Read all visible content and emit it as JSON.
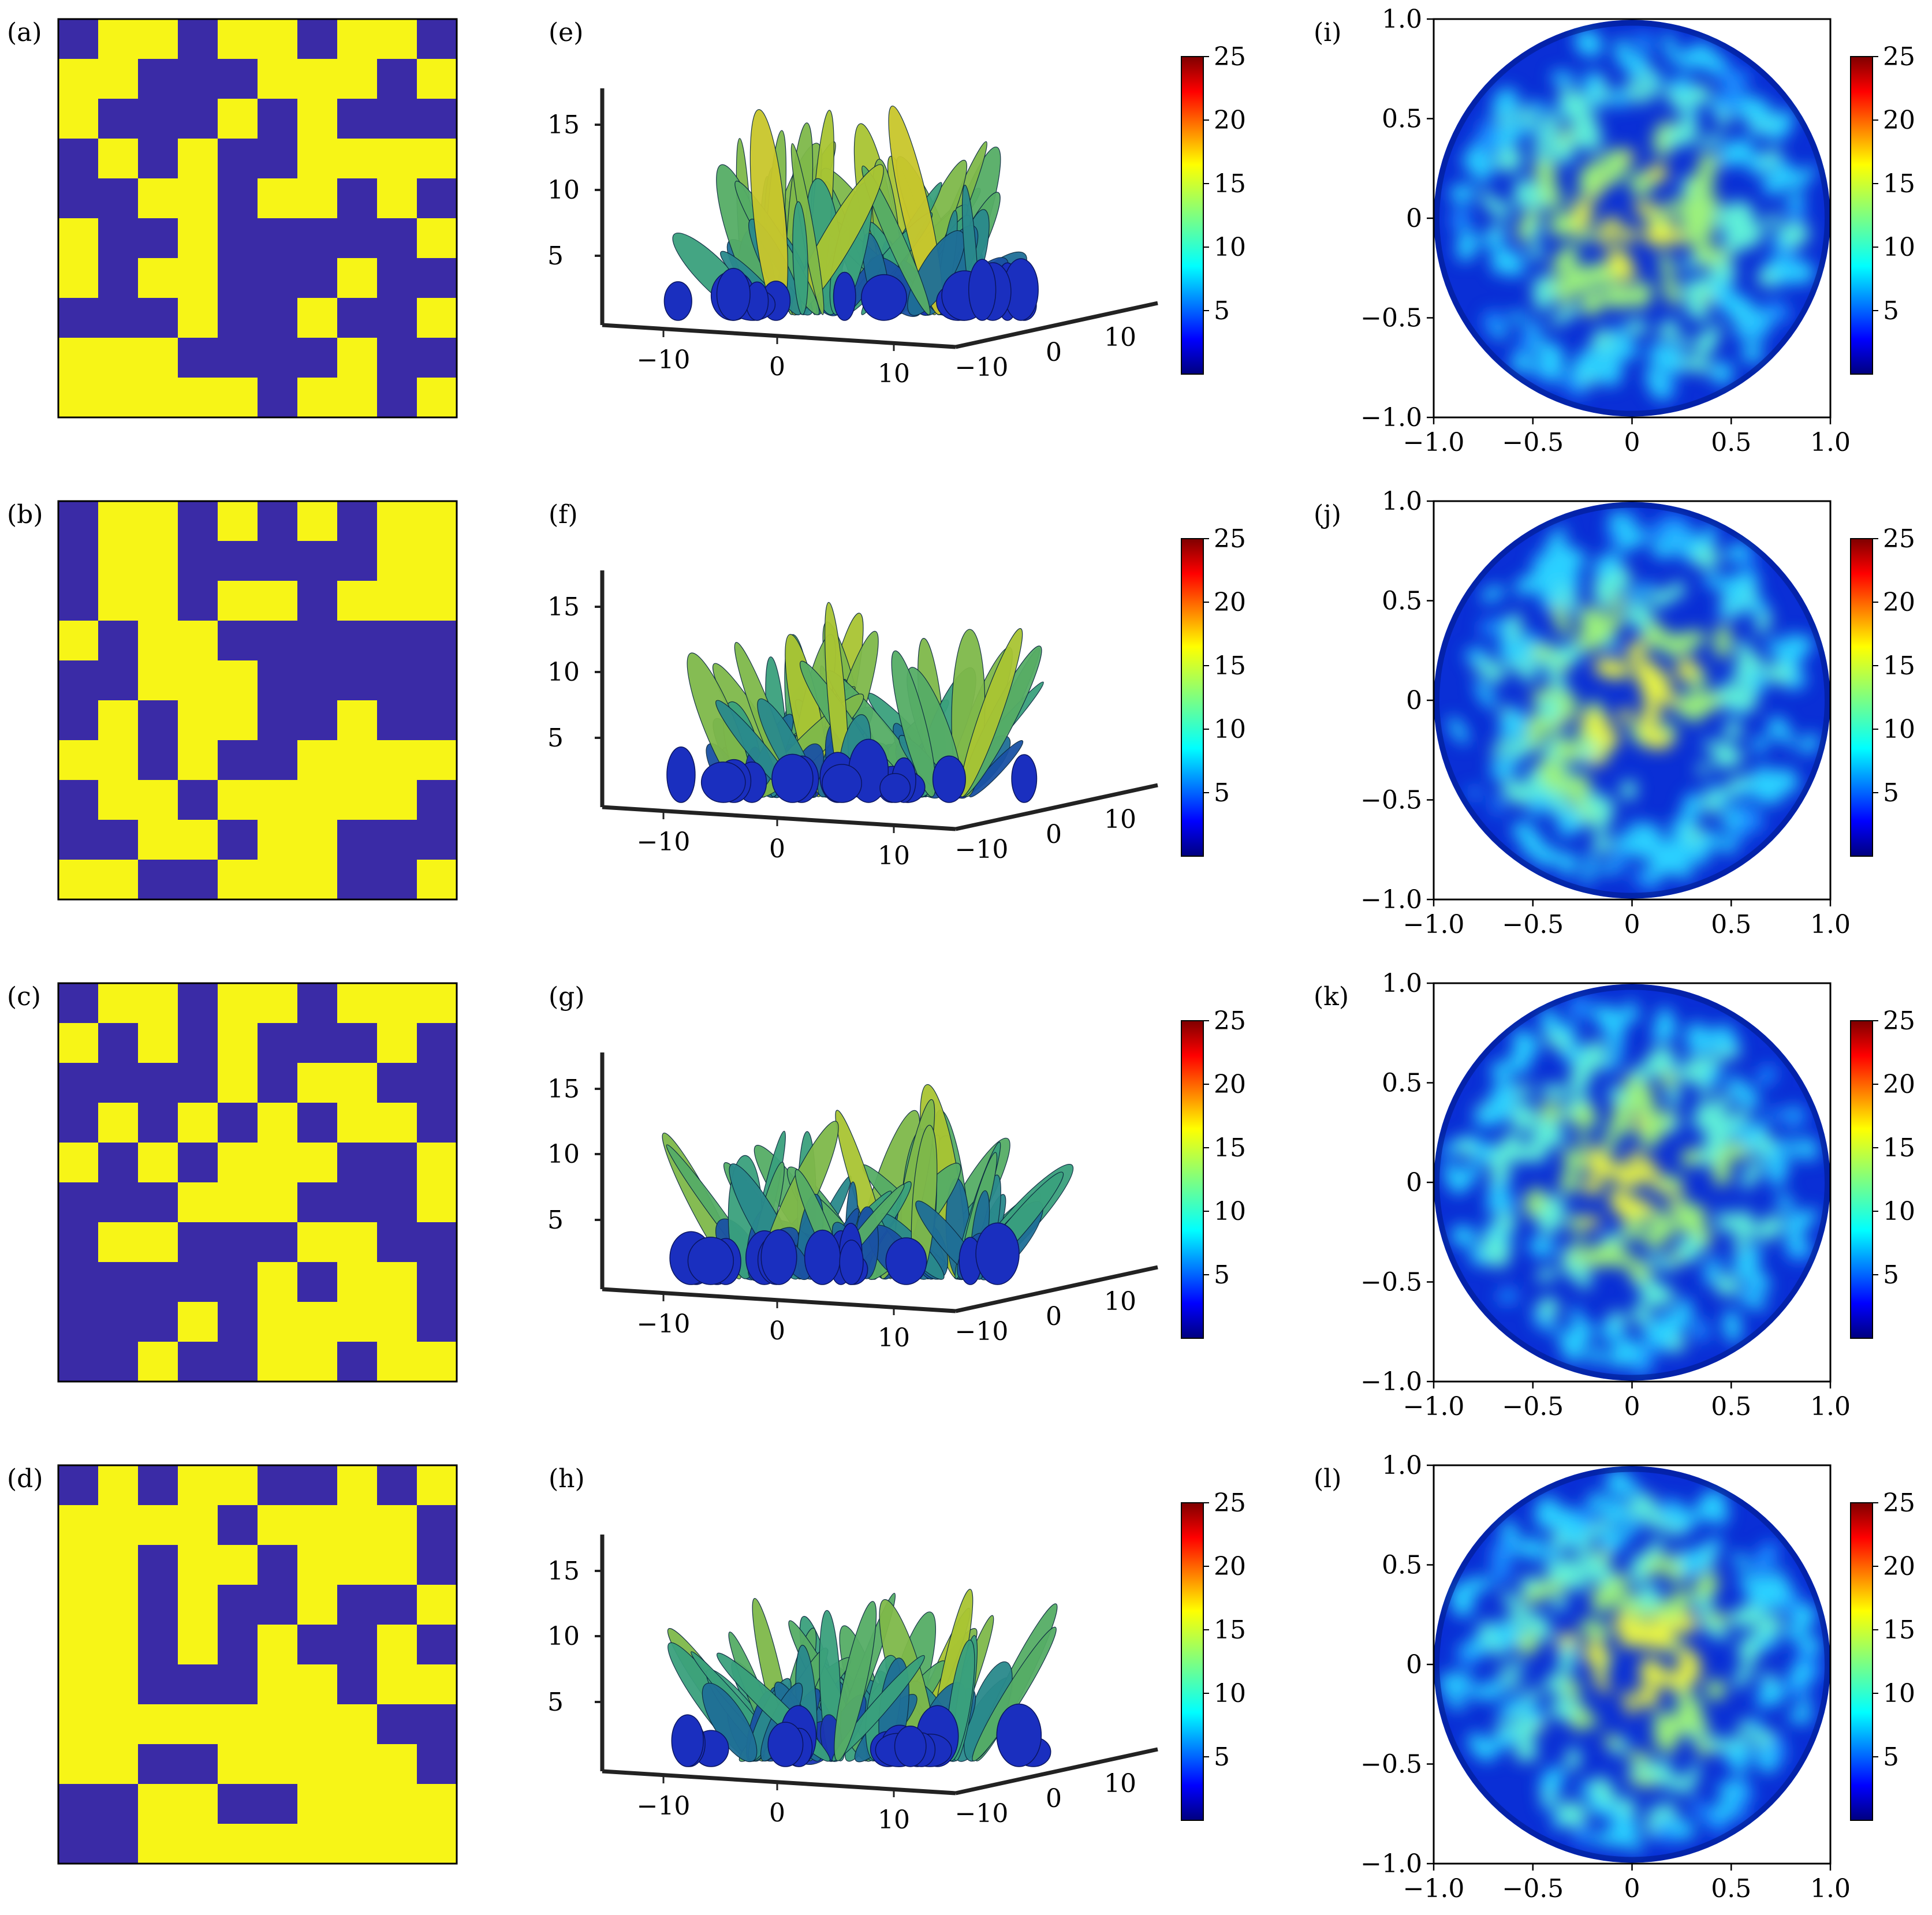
{
  "chart_data": [
    {
      "type": "heatmap",
      "panel": "(a)",
      "grid_size": 10,
      "values_01": [
        [
          0,
          1,
          1,
          0,
          1,
          1,
          0,
          1,
          1,
          0
        ],
        [
          1,
          1,
          0,
          0,
          0,
          1,
          1,
          1,
          0,
          1
        ],
        [
          1,
          0,
          0,
          0,
          1,
          0,
          1,
          0,
          0,
          0
        ],
        [
          0,
          1,
          0,
          1,
          0,
          0,
          1,
          1,
          1,
          1
        ],
        [
          0,
          0,
          1,
          1,
          0,
          1,
          1,
          0,
          1,
          0
        ],
        [
          1,
          0,
          0,
          1,
          0,
          0,
          0,
          0,
          0,
          1
        ],
        [
          1,
          0,
          1,
          1,
          0,
          0,
          0,
          1,
          0,
          0
        ],
        [
          0,
          0,
          0,
          1,
          0,
          0,
          1,
          0,
          0,
          1
        ],
        [
          1,
          1,
          1,
          0,
          0,
          0,
          0,
          1,
          0,
          0
        ],
        [
          1,
          1,
          1,
          1,
          1,
          0,
          1,
          1,
          0,
          1
        ]
      ]
    },
    {
      "type": "heatmap",
      "panel": "(b)",
      "grid_size": 10,
      "values_01": [
        [
          0,
          1,
          1,
          0,
          1,
          0,
          1,
          0,
          1,
          1
        ],
        [
          0,
          1,
          1,
          0,
          0,
          0,
          0,
          0,
          1,
          1
        ],
        [
          0,
          1,
          1,
          0,
          1,
          1,
          0,
          1,
          1,
          1
        ],
        [
          1,
          0,
          1,
          1,
          0,
          0,
          0,
          0,
          0,
          0
        ],
        [
          0,
          0,
          1,
          1,
          1,
          0,
          0,
          0,
          0,
          0
        ],
        [
          0,
          1,
          0,
          1,
          1,
          0,
          0,
          1,
          0,
          0
        ],
        [
          1,
          1,
          0,
          1,
          0,
          0,
          1,
          1,
          1,
          1
        ],
        [
          0,
          1,
          1,
          0,
          1,
          1,
          1,
          1,
          1,
          0
        ],
        [
          0,
          0,
          1,
          1,
          0,
          1,
          1,
          0,
          0,
          0
        ],
        [
          1,
          1,
          0,
          0,
          1,
          1,
          1,
          0,
          0,
          1
        ]
      ]
    },
    {
      "type": "heatmap",
      "panel": "(c)",
      "grid_size": 10,
      "values_01": [
        [
          0,
          1,
          1,
          0,
          1,
          1,
          0,
          1,
          1,
          1
        ],
        [
          1,
          0,
          1,
          0,
          1,
          0,
          0,
          0,
          1,
          0
        ],
        [
          0,
          0,
          0,
          0,
          1,
          0,
          1,
          1,
          0,
          0
        ],
        [
          0,
          1,
          0,
          1,
          0,
          1,
          0,
          1,
          1,
          0
        ],
        [
          1,
          0,
          1,
          0,
          1,
          1,
          1,
          0,
          0,
          1
        ],
        [
          0,
          0,
          0,
          1,
          1,
          1,
          0,
          0,
          0,
          1
        ],
        [
          0,
          1,
          1,
          0,
          0,
          0,
          1,
          1,
          0,
          0
        ],
        [
          0,
          0,
          0,
          0,
          0,
          1,
          0,
          1,
          1,
          0
        ],
        [
          0,
          0,
          0,
          1,
          0,
          1,
          1,
          1,
          1,
          0
        ],
        [
          0,
          0,
          1,
          0,
          0,
          1,
          1,
          0,
          1,
          1
        ]
      ]
    },
    {
      "type": "heatmap",
      "panel": "(d)",
      "grid_size": 10,
      "values_01": [
        [
          0,
          1,
          0,
          1,
          1,
          0,
          0,
          1,
          0,
          1
        ],
        [
          1,
          1,
          1,
          1,
          0,
          1,
          1,
          1,
          1,
          0
        ],
        [
          1,
          1,
          0,
          1,
          1,
          0,
          1,
          1,
          1,
          0
        ],
        [
          1,
          1,
          0,
          1,
          0,
          0,
          1,
          0,
          0,
          1
        ],
        [
          1,
          1,
          0,
          1,
          0,
          1,
          0,
          0,
          1,
          0
        ],
        [
          1,
          1,
          0,
          0,
          0,
          1,
          1,
          0,
          1,
          1
        ],
        [
          1,
          1,
          1,
          1,
          1,
          1,
          1,
          1,
          0,
          0
        ],
        [
          1,
          1,
          0,
          0,
          1,
          1,
          1,
          1,
          1,
          0
        ],
        [
          0,
          0,
          1,
          1,
          0,
          0,
          1,
          1,
          1,
          1
        ],
        [
          0,
          0,
          1,
          1,
          1,
          1,
          1,
          1,
          1,
          1
        ]
      ]
    },
    {
      "type": "surface",
      "panel": "(e)",
      "ztick_labels": [
        "5",
        "10",
        "15"
      ],
      "xtick_labels": [
        "−10",
        "0",
        "10"
      ],
      "ytick_labels": [
        "−10",
        "0",
        "10"
      ],
      "colorbar_range": [
        0,
        25
      ],
      "colorbar_ticks": [
        "5",
        "10",
        "15",
        "20",
        "25"
      ]
    },
    {
      "type": "surface",
      "panel": "(f)",
      "ztick_labels": [
        "5",
        "10",
        "15"
      ],
      "xtick_labels": [
        "−10",
        "0",
        "10"
      ],
      "ytick_labels": [
        "−10",
        "0",
        "10"
      ],
      "colorbar_range": [
        0,
        25
      ],
      "colorbar_ticks": [
        "5",
        "10",
        "15",
        "20",
        "25"
      ]
    },
    {
      "type": "surface",
      "panel": "(g)",
      "ztick_labels": [
        "5",
        "10",
        "15"
      ],
      "xtick_labels": [
        "−10",
        "0",
        "10"
      ],
      "ytick_labels": [
        "−10",
        "0",
        "10"
      ],
      "colorbar_range": [
        0,
        25
      ],
      "colorbar_ticks": [
        "5",
        "10",
        "15",
        "20",
        "25"
      ]
    },
    {
      "type": "surface",
      "panel": "(h)",
      "ztick_labels": [
        "5",
        "10",
        "15"
      ],
      "xtick_labels": [
        "−10",
        "0",
        "10"
      ],
      "ytick_labels": [
        "−10",
        "0",
        "10"
      ],
      "colorbar_range": [
        0,
        25
      ],
      "colorbar_ticks": [
        "5",
        "10",
        "15",
        "20",
        "25"
      ]
    },
    {
      "type": "heatmap",
      "panel": "(i)",
      "xlim": [
        -1.0,
        1.0
      ],
      "ylim": [
        -1.0,
        1.0
      ],
      "xtick_labels": [
        "−1.0",
        "−0.5",
        "0",
        "0.5",
        "1.0"
      ],
      "ytick_labels": [
        "1.0",
        "0.5",
        "0",
        "−0.5",
        "−1.0"
      ],
      "colorbar_range": [
        0,
        25
      ],
      "colorbar_ticks": [
        "5",
        "10",
        "15",
        "20",
        "25"
      ]
    },
    {
      "type": "heatmap",
      "panel": "(j)",
      "xlim": [
        -1.0,
        1.0
      ],
      "ylim": [
        -1.0,
        1.0
      ],
      "xtick_labels": [
        "−1.0",
        "−0.5",
        "0",
        "0.5",
        "1.0"
      ],
      "ytick_labels": [
        "1.0",
        "0.5",
        "0",
        "−0.5",
        "−1.0"
      ],
      "colorbar_range": [
        0,
        25
      ],
      "colorbar_ticks": [
        "5",
        "10",
        "15",
        "20",
        "25"
      ]
    },
    {
      "type": "heatmap",
      "panel": "(k)",
      "xlim": [
        -1.0,
        1.0
      ],
      "ylim": [
        -1.0,
        1.0
      ],
      "xtick_labels": [
        "−1.0",
        "−0.5",
        "0",
        "0.5",
        "1.0"
      ],
      "ytick_labels": [
        "1.0",
        "0.5",
        "0",
        "−0.5",
        "−1.0"
      ],
      "colorbar_range": [
        0,
        25
      ],
      "colorbar_ticks": [
        "5",
        "10",
        "15",
        "20",
        "25"
      ]
    },
    {
      "type": "heatmap",
      "panel": "(l)",
      "xlim": [
        -1.0,
        1.0
      ],
      "ylim": [
        -1.0,
        1.0
      ],
      "xtick_labels": [
        "−1.0",
        "−0.5",
        "0",
        "0.5",
        "1.0"
      ],
      "ytick_labels": [
        "1.0",
        "0.5",
        "0",
        "−0.5",
        "−1.0"
      ],
      "colorbar_range": [
        0,
        25
      ],
      "colorbar_ticks": [
        "5",
        "10",
        "15",
        "20",
        "25"
      ]
    }
  ],
  "colors": {
    "binary_on": "#f7f517",
    "binary_off": "#3a2ba6",
    "axis": "#000000",
    "axis3d": "#222222",
    "colormap": [
      "#00007f",
      "#0000ff",
      "#007fff",
      "#00ffff",
      "#7fff7f",
      "#ffff00",
      "#ff7f00",
      "#ff0000",
      "#7f0000"
    ]
  }
}
